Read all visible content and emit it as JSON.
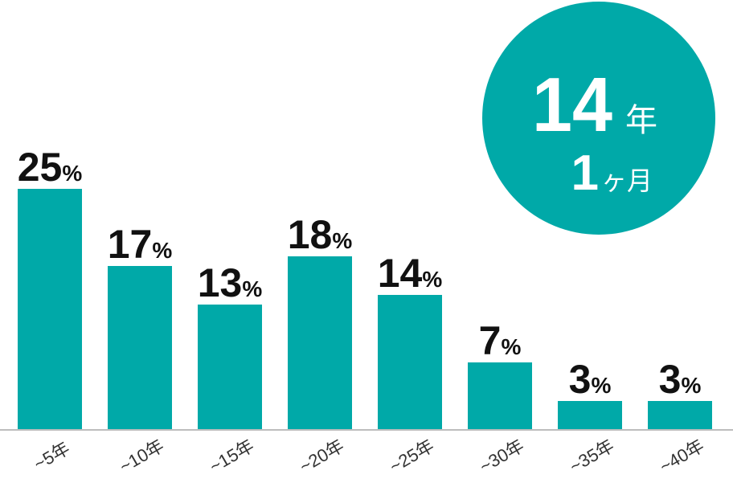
{
  "chart_data": {
    "type": "bar",
    "categories": [
      "~5年",
      "~10年",
      "~15年",
      "~20年",
      "~25年",
      "~30年",
      "~35年",
      "~40年"
    ],
    "values": [
      25,
      17,
      13,
      18,
      14,
      7,
      3,
      3
    ],
    "value_labels": [
      "25",
      "17",
      "13",
      "18",
      "14",
      "7",
      "3",
      "3"
    ],
    "value_unit": "%",
    "ylim": [
      0,
      25
    ],
    "grid": false,
    "bar_color": "#00a9a8"
  },
  "badge": {
    "years": "14",
    "years_unit": "年",
    "months": "1",
    "months_unit": "ヶ月",
    "color": "#00a9a8"
  }
}
